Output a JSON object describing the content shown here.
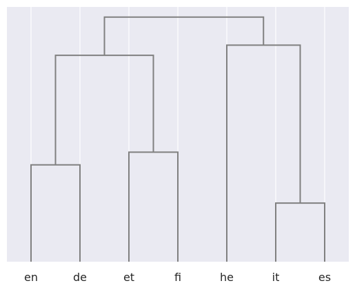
{
  "chart_data": {
    "type": "dendrogram",
    "title": "",
    "xlabel": "",
    "ylabel": "",
    "leaves": [
      "en",
      "de",
      "et",
      "fi",
      "he",
      "it",
      "es"
    ],
    "merges": [
      {
        "left": "en",
        "right": "de",
        "height": 0.38
      },
      {
        "left": "et",
        "right": "fi",
        "height": 0.43
      },
      {
        "left": "it",
        "right": "es",
        "height": 0.23
      },
      {
        "left": "he",
        "right": "it+es",
        "height": 0.85
      },
      {
        "left": "en+de",
        "right": "et+fi",
        "height": 0.81
      },
      {
        "left": "en+de+et+fi",
        "right": "he+it+es",
        "height": 0.96
      }
    ],
    "ylim": [
      0,
      1.0
    ],
    "grid": true,
    "link_color": "#808080",
    "background_color": "#eaeaf2",
    "grid_color": "#ffffff"
  }
}
